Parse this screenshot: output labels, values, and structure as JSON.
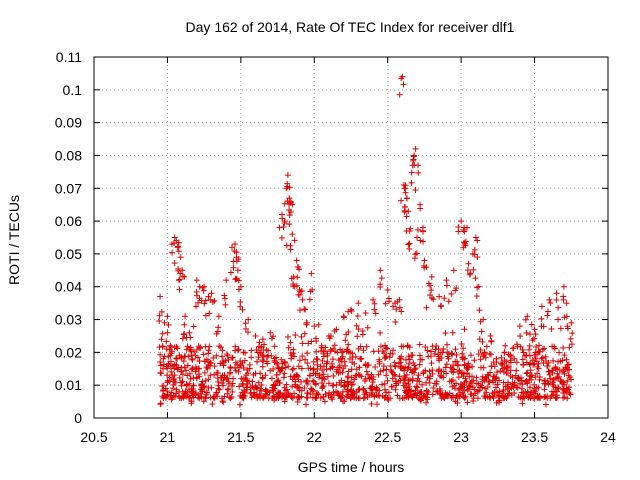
{
  "chart_data": {
    "type": "scatter",
    "title": "Day 162 of 2014, Rate Of TEC Index for receiver dlf1",
    "xlabel": "GPS time / hours",
    "ylabel": "ROTI / TECUs",
    "xlim": [
      20.5,
      24
    ],
    "ylim": [
      0,
      0.11
    ],
    "xticks": [
      "20.5",
      "21",
      "21.5",
      "22",
      "22.5",
      "23",
      "23.5",
      "24"
    ],
    "xtick_values": [
      20.5,
      21,
      21.5,
      22,
      22.5,
      23,
      23.5,
      24
    ],
    "yticks": [
      "0",
      "0.01",
      "0.02",
      "0.03",
      "0.04",
      "0.05",
      "0.06",
      "0.07",
      "0.08",
      "0.09",
      "0.1",
      "0.11"
    ],
    "ytick_values": [
      0,
      0.01,
      0.02,
      0.03,
      0.04,
      0.05,
      0.06,
      0.07,
      0.08,
      0.09,
      0.1,
      0.11
    ],
    "grid": true,
    "marker": "+",
    "color": "#e00000",
    "x_extent_of_data": [
      20.95,
      23.75
    ],
    "series": [
      {
        "name": "dlf1",
        "points": [
          [
            20.95,
            0.037
          ],
          [
            20.96,
            0.024
          ],
          [
            20.97,
            0.015
          ],
          [
            20.98,
            0.029
          ],
          [
            21.0,
            0.031
          ],
          [
            21.02,
            0.022
          ],
          [
            21.05,
            0.055
          ],
          [
            21.06,
            0.054
          ],
          [
            21.07,
            0.052
          ],
          [
            21.09,
            0.049
          ],
          [
            21.1,
            0.045
          ],
          [
            21.12,
            0.031
          ],
          [
            21.15,
            0.026
          ],
          [
            21.2,
            0.042
          ],
          [
            21.22,
            0.04
          ],
          [
            21.25,
            0.04
          ],
          [
            21.28,
            0.037
          ],
          [
            21.3,
            0.038
          ],
          [
            21.35,
            0.031
          ],
          [
            21.4,
            0.042
          ],
          [
            21.44,
            0.052
          ],
          [
            21.46,
            0.053
          ],
          [
            21.47,
            0.049
          ],
          [
            21.48,
            0.045
          ],
          [
            21.5,
            0.04
          ],
          [
            21.55,
            0.03
          ],
          [
            21.6,
            0.025
          ],
          [
            21.65,
            0.024
          ],
          [
            21.7,
            0.026
          ],
          [
            21.78,
            0.062
          ],
          [
            21.8,
            0.06
          ],
          [
            21.81,
            0.07
          ],
          [
            21.82,
            0.074
          ],
          [
            21.83,
            0.067
          ],
          [
            21.84,
            0.066
          ],
          [
            21.85,
            0.056
          ],
          [
            21.86,
            0.043
          ],
          [
            21.88,
            0.048
          ],
          [
            21.89,
            0.046
          ],
          [
            21.9,
            0.039
          ],
          [
            21.92,
            0.036
          ],
          [
            21.95,
            0.029
          ],
          [
            21.98,
            0.044
          ],
          [
            22.0,
            0.028
          ],
          [
            22.05,
            0.022
          ],
          [
            22.1,
            0.025
          ],
          [
            22.15,
            0.027
          ],
          [
            22.2,
            0.031
          ],
          [
            22.25,
            0.033
          ],
          [
            22.3,
            0.035
          ],
          [
            22.35,
            0.032
          ],
          [
            22.4,
            0.036
          ],
          [
            22.45,
            0.045
          ],
          [
            22.5,
            0.039
          ],
          [
            22.55,
            0.035
          ],
          [
            22.58,
            0.036
          ],
          [
            22.6,
            0.104
          ],
          [
            22.61,
            0.071
          ],
          [
            22.62,
            0.07
          ],
          [
            22.63,
            0.067
          ],
          [
            22.64,
            0.063
          ],
          [
            22.65,
            0.057
          ],
          [
            22.67,
            0.077
          ],
          [
            22.68,
            0.08
          ],
          [
            22.69,
            0.082
          ],
          [
            22.7,
            0.055
          ],
          [
            22.72,
            0.065
          ],
          [
            22.74,
            0.058
          ],
          [
            22.75,
            0.048
          ],
          [
            22.78,
            0.041
          ],
          [
            22.8,
            0.043
          ],
          [
            22.85,
            0.037
          ],
          [
            22.9,
            0.042
          ],
          [
            22.95,
            0.045
          ],
          [
            23.0,
            0.06
          ],
          [
            23.02,
            0.058
          ],
          [
            23.04,
            0.058
          ],
          [
            23.05,
            0.047
          ],
          [
            23.08,
            0.05
          ],
          [
            23.1,
            0.055
          ],
          [
            23.12,
            0.04
          ],
          [
            23.15,
            0.03
          ],
          [
            23.2,
            0.025
          ],
          [
            23.3,
            0.022
          ],
          [
            23.4,
            0.028
          ],
          [
            23.45,
            0.031
          ],
          [
            23.5,
            0.027
          ],
          [
            23.55,
            0.034
          ],
          [
            23.6,
            0.036
          ],
          [
            23.65,
            0.038
          ],
          [
            23.7,
            0.04
          ],
          [
            23.72,
            0.031
          ],
          [
            23.75,
            0.029
          ]
        ]
      }
    ]
  }
}
